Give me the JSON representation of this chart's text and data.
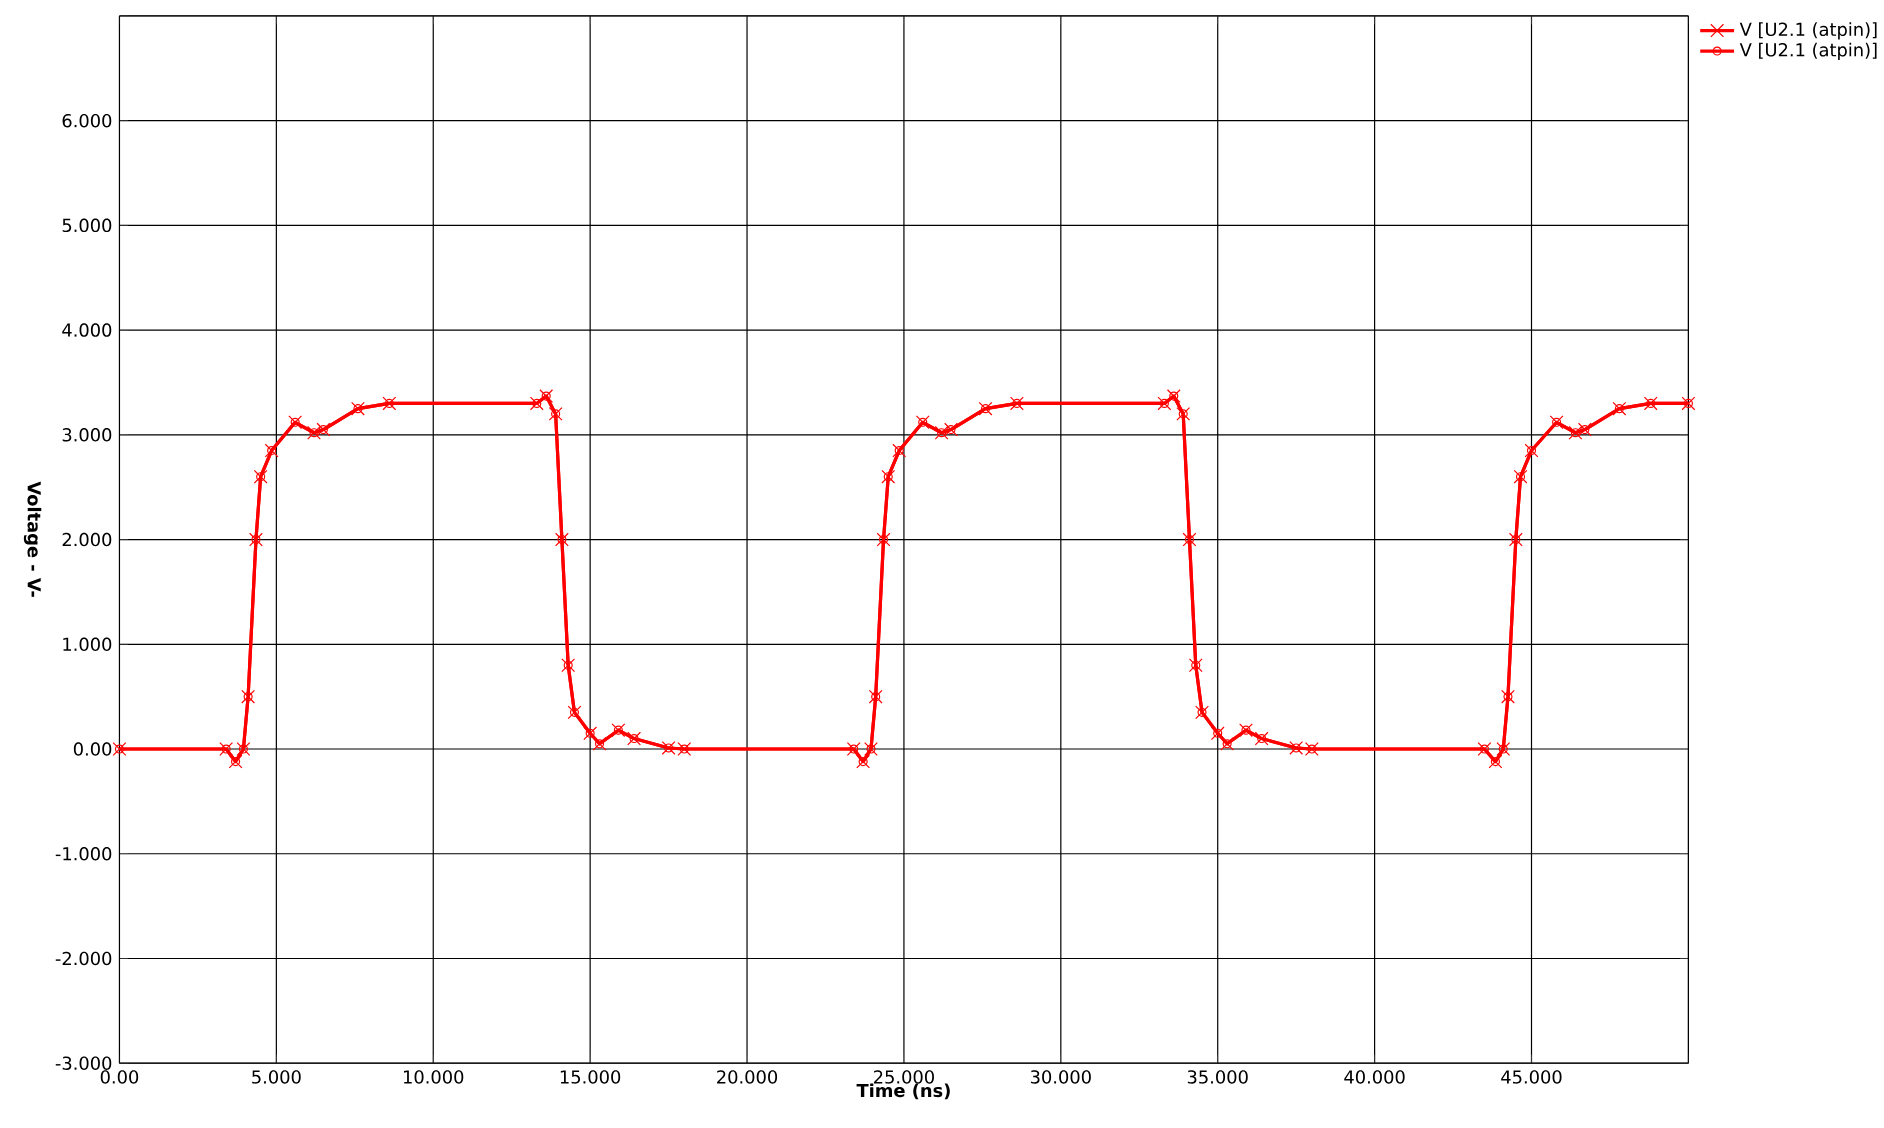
{
  "chart_data": {
    "type": "line",
    "xlabel": "Time (ns)",
    "ylabel": "Voltage - V-",
    "x": [
      0,
      3.4,
      3.7,
      3.95,
      4.1,
      4.35,
      4.5,
      4.85,
      5.6,
      6.2,
      6.5,
      7.6,
      8.6,
      13.3,
      13.6,
      13.9,
      14.1,
      14.3,
      14.5,
      15.0,
      15.3,
      15.9,
      16.4,
      17.5,
      18.0,
      23.4,
      23.7,
      23.95,
      24.1,
      24.35,
      24.5,
      24.85,
      25.6,
      26.2,
      26.5,
      27.6,
      28.6,
      33.3,
      33.6,
      33.9,
      34.1,
      34.3,
      34.5,
      35.0,
      35.3,
      35.9,
      36.4,
      37.5,
      38.0,
      43.5,
      43.85,
      44.1,
      44.25,
      44.5,
      44.65,
      45.0,
      45.8,
      46.4,
      46.7,
      47.8,
      48.8,
      50
    ],
    "series": [
      {
        "name": "V [U2.1 (atpin)]",
        "color": "#ff0000",
        "marker": "cross",
        "values": [
          0,
          0,
          -0.12,
          0,
          0.5,
          2.0,
          2.6,
          2.85,
          3.12,
          3.02,
          3.05,
          3.25,
          3.3,
          3.3,
          3.37,
          3.2,
          2.0,
          0.8,
          0.35,
          0.15,
          0.05,
          0.18,
          0.1,
          0.01,
          0,
          0,
          -0.12,
          0,
          0.5,
          2.0,
          2.6,
          2.85,
          3.12,
          3.02,
          3.05,
          3.25,
          3.3,
          3.3,
          3.37,
          3.2,
          2.0,
          0.8,
          0.35,
          0.15,
          0.05,
          0.18,
          0.1,
          0.01,
          0,
          0,
          -0.12,
          0,
          0.5,
          2.0,
          2.6,
          2.85,
          3.12,
          3.02,
          3.05,
          3.25,
          3.3,
          3.3
        ]
      },
      {
        "name": "V [U2.1 (atpin)]",
        "color": "#ff0000",
        "marker": "circle",
        "values": [
          0,
          0,
          -0.12,
          0,
          0.5,
          2.0,
          2.6,
          2.85,
          3.12,
          3.02,
          3.05,
          3.25,
          3.3,
          3.3,
          3.37,
          3.2,
          2.0,
          0.8,
          0.35,
          0.15,
          0.05,
          0.18,
          0.1,
          0.01,
          0,
          0,
          -0.12,
          0,
          0.5,
          2.0,
          2.6,
          2.85,
          3.12,
          3.02,
          3.05,
          3.25,
          3.3,
          3.3,
          3.37,
          3.2,
          2.0,
          0.8,
          0.35,
          0.15,
          0.05,
          0.18,
          0.1,
          0.01,
          0,
          0,
          -0.12,
          0,
          0.5,
          2.0,
          2.6,
          2.85,
          3.12,
          3.02,
          3.05,
          3.25,
          3.3,
          3.3
        ]
      }
    ],
    "xlim": [
      0,
      50
    ],
    "ylim": [
      -3,
      7
    ],
    "xticks": [
      {
        "value": 0,
        "label": "0.00"
      },
      {
        "value": 5,
        "label": "5.000"
      },
      {
        "value": 10,
        "label": "10.000"
      },
      {
        "value": 15,
        "label": "15.000"
      },
      {
        "value": 20,
        "label": "20.000"
      },
      {
        "value": 25,
        "label": "25.000"
      },
      {
        "value": 30,
        "label": "30.000"
      },
      {
        "value": 35,
        "label": "35.000"
      },
      {
        "value": 40,
        "label": "40.000"
      },
      {
        "value": 45,
        "label": "45.000"
      },
      {
        "value": 50,
        "label": null
      }
    ],
    "yticks": [
      {
        "value": -3,
        "label": "-3.000"
      },
      {
        "value": -2,
        "label": "-2.000"
      },
      {
        "value": -1,
        "label": "-1.000"
      },
      {
        "value": 0,
        "label": "0.00"
      },
      {
        "value": 1,
        "label": "1.000"
      },
      {
        "value": 2,
        "label": "2.000"
      },
      {
        "value": 3,
        "label": "3.000"
      },
      {
        "value": 4,
        "label": "4.000"
      },
      {
        "value": 5,
        "label": "5.000"
      },
      {
        "value": 6,
        "label": "6.000"
      },
      {
        "value": 7,
        "label": null
      }
    ],
    "grid": true,
    "legend": "top right",
    "line_style": "solid"
  }
}
